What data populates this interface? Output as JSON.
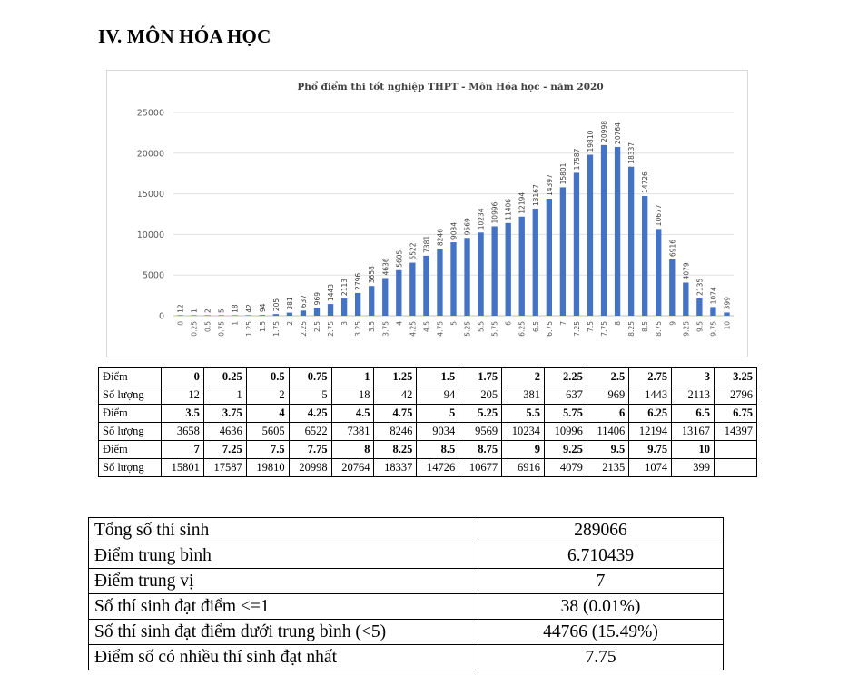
{
  "heading": "IV. MÔN HÓA HỌC",
  "chart_data": {
    "type": "bar",
    "title": "Phổ điểm thi tốt nghiệp THPT - Môn Hóa học - năm 2020",
    "xlabel": "",
    "ylabel": "",
    "ylim": [
      0,
      25000
    ],
    "yticks": [
      "0",
      "5000",
      "10000",
      "15000",
      "20000",
      "25000"
    ],
    "grid": true,
    "bar_color": "#4472C4",
    "categories": [
      "0",
      "0.25",
      "0.5",
      "0.75",
      "1",
      "1.25",
      "1.5",
      "1.75",
      "2",
      "2.25",
      "2.5",
      "2.75",
      "3",
      "3.25",
      "3.5",
      "3.75",
      "4",
      "4.25",
      "4.5",
      "4.75",
      "5",
      "5.25",
      "5.5",
      "5.75",
      "6",
      "6.25",
      "6.5",
      "6.75",
      "7",
      "7.25",
      "7.5",
      "7.75",
      "8",
      "8.25",
      "8.5",
      "8.75",
      "9",
      "9.25",
      "9.5",
      "9.75",
      "10"
    ],
    "values": [
      12,
      1,
      2,
      5,
      18,
      42,
      94,
      205,
      381,
      637,
      969,
      1443,
      2113,
      2796,
      3658,
      4636,
      5605,
      6522,
      7381,
      8246,
      9034,
      9569,
      10234,
      10996,
      11406,
      12194,
      13167,
      14397,
      15801,
      17587,
      19810,
      20998,
      20764,
      18337,
      14726,
      10677,
      6916,
      4079,
      2135,
      1074,
      399
    ]
  },
  "score_table": {
    "label_score": "Điểm",
    "label_count": "Số lượng",
    "rows": [
      {
        "scores": [
          "0",
          "0.25",
          "0.5",
          "0.75",
          "1",
          "1.25",
          "1.5",
          "1.75",
          "2",
          "2.25",
          "2.5",
          "2.75",
          "3",
          "3.25"
        ],
        "counts": [
          "12",
          "1",
          "2",
          "5",
          "18",
          "42",
          "94",
          "205",
          "381",
          "637",
          "969",
          "1443",
          "2113",
          "2796"
        ]
      },
      {
        "scores": [
          "3.5",
          "3.75",
          "4",
          "4.25",
          "4.5",
          "4.75",
          "5",
          "5.25",
          "5.5",
          "5.75",
          "6",
          "6.25",
          "6.5",
          "6.75"
        ],
        "counts": [
          "3658",
          "4636",
          "5605",
          "6522",
          "7381",
          "8246",
          "9034",
          "9569",
          "10234",
          "10996",
          "11406",
          "12194",
          "13167",
          "14397"
        ]
      },
      {
        "scores": [
          "7",
          "7.25",
          "7.5",
          "7.75",
          "8",
          "8.25",
          "8.5",
          "8.75",
          "9",
          "9.25",
          "9.5",
          "9.75",
          "10",
          ""
        ],
        "counts": [
          "15801",
          "17587",
          "19810",
          "20998",
          "20764",
          "18337",
          "14726",
          "10677",
          "6916",
          "4079",
          "2135",
          "1074",
          "399",
          ""
        ]
      }
    ]
  },
  "stats": [
    {
      "label": "Tổng số thí sinh",
      "value": "289066"
    },
    {
      "label": "Điểm trung bình",
      "value": "6.710439"
    },
    {
      "label": "Điểm trung vị",
      "value": "7"
    },
    {
      "label": "Số thí sinh đạt điểm <=1",
      "value": "38 (0.01%)"
    },
    {
      "label": "Số thí sinh đạt điểm dưới trung bình (<5)",
      "value": "44766 (15.49%)"
    },
    {
      "label": "Điểm số có nhiều thí sinh đạt nhất",
      "value": "7.75"
    }
  ]
}
